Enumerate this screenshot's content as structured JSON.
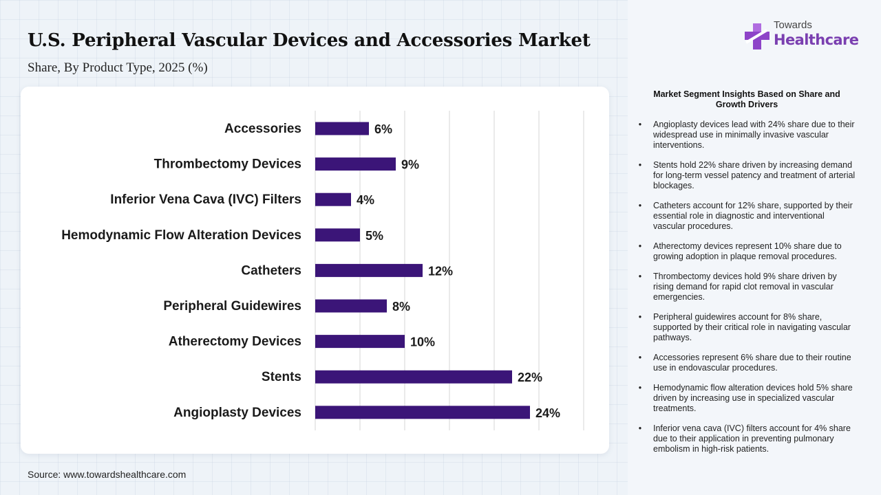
{
  "header": {
    "title": "U.S. Peripheral Vascular Devices and Accessories Market",
    "subtitle": "Share, By Product Type, 2025 (%)"
  },
  "logo": {
    "top": "Towards",
    "main": "Healthcare",
    "colors": {
      "cross": "#8e44c8",
      "text": "#7a3fb0"
    }
  },
  "source": "Source: www.towardshealthcare.com",
  "insights": {
    "title": "Market Segment Insights Based on Share and Growth Drivers",
    "items": [
      "Angioplasty devices lead with 24% share due to their widespread use in minimally invasive vascular interventions.",
      "Stents hold 22% share driven by increasing demand for long-term vessel patency and treatment of arterial blockages.",
      "Catheters account for 12% share, supported by their essential role in diagnostic and interventional vascular procedures.",
      "Atherectomy devices represent 10% share due to growing adoption in plaque removal procedures.",
      "Thrombectomy devices hold 9% share driven by rising demand for rapid clot removal in vascular emergencies.",
      "Peripheral guidewires account for 8% share, supported by their critical role in navigating vascular pathways.",
      "Accessories represent 6% share due to their routine use in endovascular procedures.",
      "Hemodynamic flow alteration devices hold 5% share driven by increasing use in specialized vascular treatments.",
      "Inferior vena cava (IVC) filters account for 4% share due to their application in preventing pulmonary embolism in high-risk patients."
    ]
  },
  "chart_data": {
    "type": "bar",
    "orientation": "horizontal",
    "title": "U.S. Peripheral Vascular Devices and Accessories Market",
    "subtitle": "Share, By Product Type, 2025 (%)",
    "categories": [
      "Accessories",
      "Thrombectomy Devices",
      "Inferior Vena Cava (IVC) Filters",
      "Hemodynamic Flow Alteration Devices",
      "Catheters",
      "Peripheral Guidewires",
      "Atherectomy Devices",
      "Stents",
      "Angioplasty Devices"
    ],
    "values": [
      6,
      9,
      4,
      5,
      12,
      8,
      10,
      22,
      24
    ],
    "value_labels": [
      "6%",
      "9%",
      "4%",
      "5%",
      "12%",
      "8%",
      "10%",
      "22%",
      "24%"
    ],
    "xlim": [
      0,
      30
    ],
    "grid": true,
    "legend": "none",
    "colors": {
      "bar": "#3b1578",
      "grid": "#d4d4d4"
    }
  }
}
